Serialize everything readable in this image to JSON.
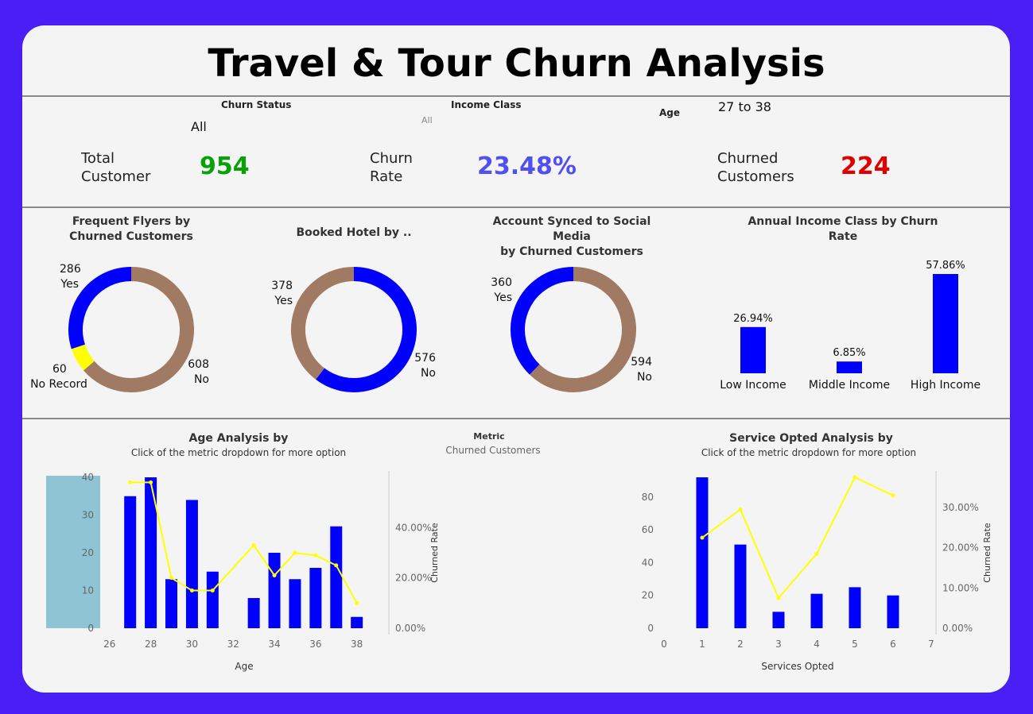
{
  "title": "Travel & Tour Churn Analysis",
  "filters": {
    "churn_status": {
      "label": "Churn Status",
      "value": "All"
    },
    "income_class": {
      "label": "Income Class",
      "value": "All"
    },
    "age": {
      "label": "Age",
      "value": "27 to 38"
    }
  },
  "kpis": {
    "total": {
      "label_1": "Total",
      "label_2": "Customer",
      "value": "954",
      "color": "#0aa00a"
    },
    "rate": {
      "label_1": "Churn",
      "label_2": "Rate",
      "value": "23.48%",
      "color": "#5050f0"
    },
    "churned": {
      "label_1": "Churned",
      "label_2": "Customers",
      "value": "224",
      "color": "#e00000"
    }
  },
  "colors": {
    "blue": "#0000ff",
    "brown": "#a07a62",
    "yellow": "#ffff00",
    "age_highlight": "#8ec4d3"
  },
  "donuts": [
    {
      "title_1": "Frequent Flyers by",
      "title_2": "Churned Customers",
      "slices": [
        {
          "label": "Yes",
          "value": 286,
          "color": "#0000ff"
        },
        {
          "label": "No",
          "value": 608,
          "color": "#a07a62"
        },
        {
          "label": "No Record",
          "value": 60,
          "color": "#ffff00"
        }
      ]
    },
    {
      "title_1": "Booked Hotel by ..",
      "title_2": "",
      "slices": [
        {
          "label": "No",
          "value": 576,
          "color": "#0000ff"
        },
        {
          "label": "Yes",
          "value": 378,
          "color": "#a07a62"
        }
      ]
    },
    {
      "title_1": "Account Synced to Social Media",
      "title_2": "by Churned Customers",
      "slices": [
        {
          "label": "No",
          "value": 594,
          "color": "#a07a62"
        },
        {
          "label": "Yes",
          "value": 360,
          "color": "#0000ff"
        }
      ]
    }
  ],
  "income_chart": {
    "title_1": "Annual Income Class by Churn",
    "title_2": "Rate",
    "categories": [
      "Low Income",
      "Middle Income",
      "High Income"
    ],
    "labels": [
      "26.94%",
      "6.85%",
      "57.86%"
    ],
    "values": [
      26.94,
      6.85,
      57.86
    ]
  },
  "metric": {
    "label": "Metric",
    "value": "Churned Customers"
  },
  "chart_data": [
    {
      "type": "bar",
      "title": "Age Analysis by",
      "subtitle": "Click of the metric dropdown for more option",
      "xlabel": "Age",
      "ylabel_right": "Churned Rate",
      "x": [
        27,
        28,
        29,
        30,
        31,
        33,
        34,
        35,
        36,
        37,
        38
      ],
      "bars": [
        35,
        40,
        13,
        34,
        15,
        8,
        20,
        13,
        16,
        27,
        3
      ],
      "line": [
        58,
        58,
        20,
        15,
        15,
        33,
        21,
        30,
        29,
        25,
        10
      ],
      "xticks": [
        "26",
        "28",
        "30",
        "32",
        "34",
        "36",
        "38"
      ],
      "yticks_left": [
        "0",
        "10",
        "20",
        "30",
        "40"
      ],
      "yticks_right": [
        "0.00%",
        "20.00%",
        "40.00%"
      ],
      "xlim": [
        25.7,
        38.9
      ],
      "ylim_left": [
        0,
        40
      ],
      "ylim_right": [
        0,
        60
      ]
    },
    {
      "type": "bar",
      "title": "Service Opted Analysis by",
      "subtitle": "Click of the metric dropdown for more option",
      "xlabel": "Services Opted",
      "ylabel_right": "Churned Rate",
      "x": [
        1,
        2,
        3,
        4,
        5,
        6
      ],
      "bars": [
        92,
        51,
        10,
        21,
        25,
        20
      ],
      "line": [
        22.5,
        29.5,
        7.5,
        18.5,
        37.5,
        33
      ],
      "xticks": [
        "0",
        "1",
        "2",
        "3",
        "4",
        "5",
        "6",
        "7"
      ],
      "yticks_left": [
        "0",
        "20",
        "40",
        "60",
        "80"
      ],
      "yticks_right": [
        "0.00%",
        "10.00%",
        "20.00%",
        "30.00%"
      ],
      "xlim": [
        0,
        7
      ],
      "ylim_left": [
        0,
        92
      ],
      "ylim_right": [
        0,
        37.5
      ]
    }
  ]
}
